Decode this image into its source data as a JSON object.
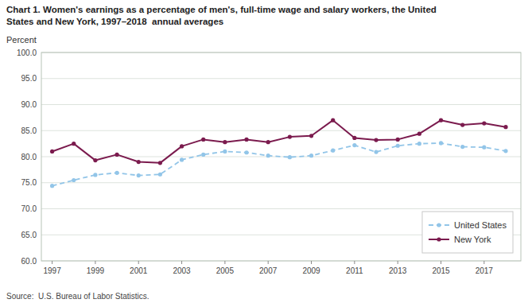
{
  "chart_data": {
    "type": "line",
    "title": "Chart 1. Women's earnings as a percentage of men's, full-time wage and salary workers, the United",
    "subtitle": "States and New York, 1997–2018  annual averages",
    "y_label": "Percent",
    "annotations": [
      "Source:  U.S. Bureau of Labor Statistics."
    ],
    "x": [
      1997,
      1998,
      1999,
      2000,
      2001,
      2002,
      2003,
      2004,
      2005,
      2006,
      2007,
      2008,
      2009,
      2010,
      2011,
      2012,
      2013,
      2014,
      2015,
      2016,
      2017,
      2018
    ],
    "series": [
      {
        "name": "United States",
        "color": "#92C5E8",
        "line_style": "dashed",
        "marker": "circle",
        "values": [
          74.4,
          75.5,
          76.5,
          76.9,
          76.4,
          76.6,
          79.4,
          80.4,
          81.0,
          80.8,
          80.2,
          79.9,
          80.2,
          81.2,
          82.2,
          80.9,
          82.1,
          82.5,
          82.6,
          81.9,
          81.8,
          81.1
        ]
      },
      {
        "name": "New York",
        "color": "#7B1B4E",
        "line_style": "solid",
        "marker": "circle",
        "values": [
          81.0,
          82.5,
          79.3,
          80.4,
          79.0,
          78.8,
          82.0,
          83.3,
          82.8,
          83.3,
          82.8,
          83.8,
          84.0,
          87.0,
          83.6,
          83.2,
          83.3,
          84.4,
          87.0,
          86.1,
          86.4,
          85.7
        ]
      }
    ],
    "xlim": [
      1996.5,
      2018.7
    ],
    "xticks": [
      1997,
      1999,
      2001,
      2003,
      2005,
      2007,
      2009,
      2011,
      2013,
      2015,
      2017
    ],
    "ylim": [
      60.0,
      100.0
    ],
    "yticks": [
      {
        "value": 60.0,
        "label": "60.0"
      },
      {
        "value": 65.0,
        "label": "65.0"
      },
      {
        "value": 70.0,
        "label": "70.0"
      },
      {
        "value": 75.0,
        "label": "75.0"
      },
      {
        "value": 80.0,
        "label": "80.0"
      },
      {
        "value": 85.0,
        "label": "85.0"
      },
      {
        "value": 90.0,
        "label": "90.0"
      },
      {
        "value": 95.0,
        "label": "95.0"
      },
      {
        "value": 100.0,
        "label": "100.0"
      }
    ],
    "grid": true,
    "legend": "lower right"
  }
}
